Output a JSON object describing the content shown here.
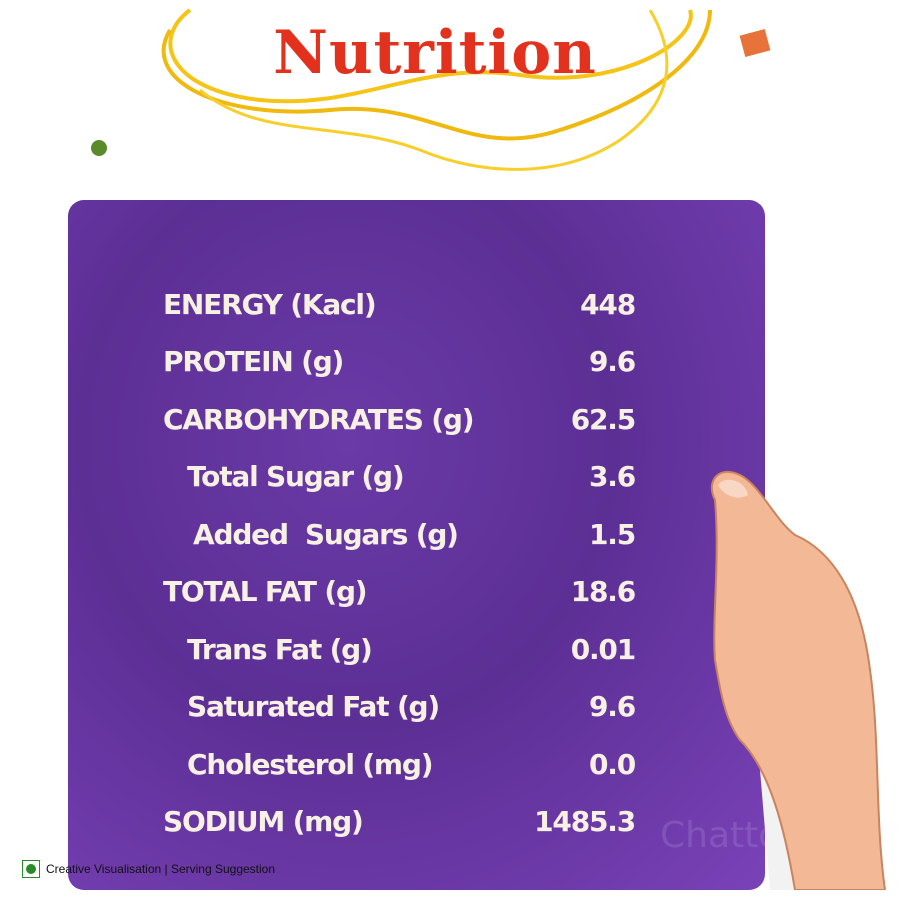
{
  "header": {
    "title": "Nutrition"
  },
  "table": {
    "rows": [
      [
        "ENERGY (Kacl)",
        "448"
      ],
      [
        "PROTEIN (g)",
        "9.6"
      ],
      [
        "CARBOHYDRATES (g)",
        "62.5"
      ],
      [
        "Total Sugar (g)",
        "3.6"
      ],
      [
        "Added  Sugars (g)",
        "1.5"
      ],
      [
        "TOTAL FAT (g)",
        "18.6"
      ],
      [
        "Trans Fat (g)",
        "0.01"
      ],
      [
        "Saturated Fat (g)",
        "9.6"
      ],
      [
        "Cholesterol (mg)",
        "0.0"
      ],
      [
        "SODIUM (mg)",
        "1485.3"
      ]
    ]
  },
  "watermark": "ChattoBao",
  "footer": {
    "note": "Creative Visualisation | Serving Suggestion"
  }
}
